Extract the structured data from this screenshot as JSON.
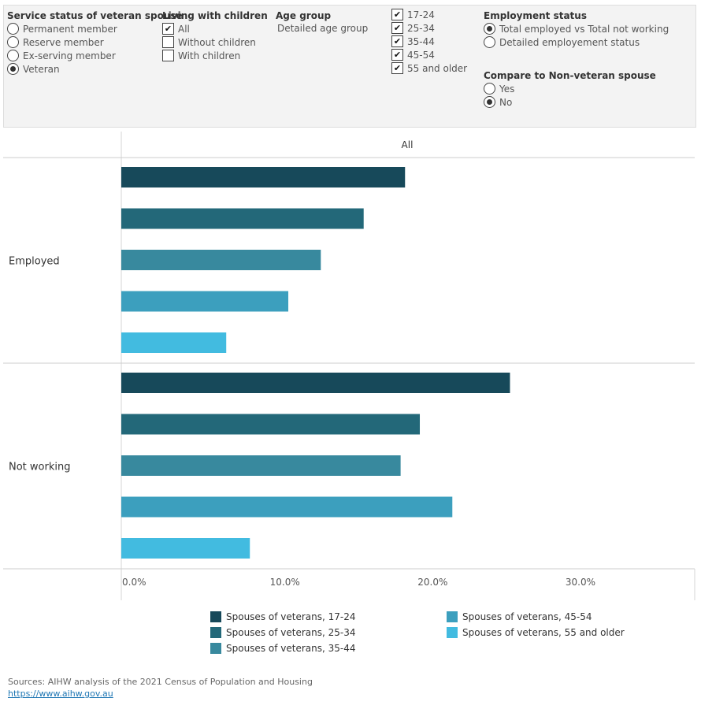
{
  "filters": {
    "service_status": {
      "title": "Service status of veteran spouse",
      "options": [
        {
          "label": "Permanent member",
          "selected": false
        },
        {
          "label": "Reserve member",
          "selected": false
        },
        {
          "label": "Ex-serving member",
          "selected": false
        },
        {
          "label": "Veteran",
          "selected": true
        }
      ]
    },
    "living_with_children": {
      "title": "Living with children",
      "options": [
        {
          "label": "All",
          "checked": true
        },
        {
          "label": "Without children",
          "checked": false
        },
        {
          "label": "With children",
          "checked": false
        }
      ]
    },
    "age_group": {
      "title": "Age group",
      "subtitle": "Detailed age group",
      "options": [
        {
          "label": "17-24",
          "checked": true
        },
        {
          "label": "25-34",
          "checked": true
        },
        {
          "label": "35-44",
          "checked": true
        },
        {
          "label": "45-54",
          "checked": true
        },
        {
          "label": "55 and older",
          "checked": true
        }
      ]
    },
    "employment_status": {
      "title": "Employment status",
      "options": [
        {
          "label": "Total employed vs Total not working",
          "selected": true
        },
        {
          "label": "Detailed employement status",
          "selected": false
        }
      ]
    },
    "compare": {
      "title": "Compare to Non-veteran spouse",
      "options": [
        {
          "label": "Yes",
          "selected": false
        },
        {
          "label": "No",
          "selected": true
        }
      ]
    }
  },
  "chart_data": {
    "type": "bar",
    "orientation": "horizontal",
    "column_header": "All",
    "categories": [
      "Employed",
      "Not working"
    ],
    "series": [
      {
        "name": "Spouses of veterans, 17-24",
        "color": "#17495a",
        "values": [
          19.2,
          26.3
        ]
      },
      {
        "name": "Spouses of veterans, 25-34",
        "color": "#236879",
        "values": [
          16.4,
          20.2
        ]
      },
      {
        "name": "Spouses of veterans, 35-44",
        "color": "#38899e",
        "values": [
          13.5,
          18.9
        ]
      },
      {
        "name": "Spouses of veterans, 45-54",
        "color": "#3c9fbe",
        "values": [
          11.3,
          22.4
        ]
      },
      {
        "name": "Spouses of veterans, 55 and older",
        "color": "#42bbe0",
        "values": [
          7.1,
          8.7
        ]
      }
    ],
    "xlim": [
      0,
      38.8
    ],
    "xticks": [
      0,
      10,
      20,
      30
    ],
    "xtick_labels": [
      "0.0%",
      "10.0%",
      "20.0%",
      "30.0%"
    ],
    "grid": false,
    "legend_position": "bottom"
  },
  "source": {
    "text": "Sources: AIHW analysis of the 2021 Census of Population and Housing",
    "link": "https://www.aihw.gov.au"
  }
}
